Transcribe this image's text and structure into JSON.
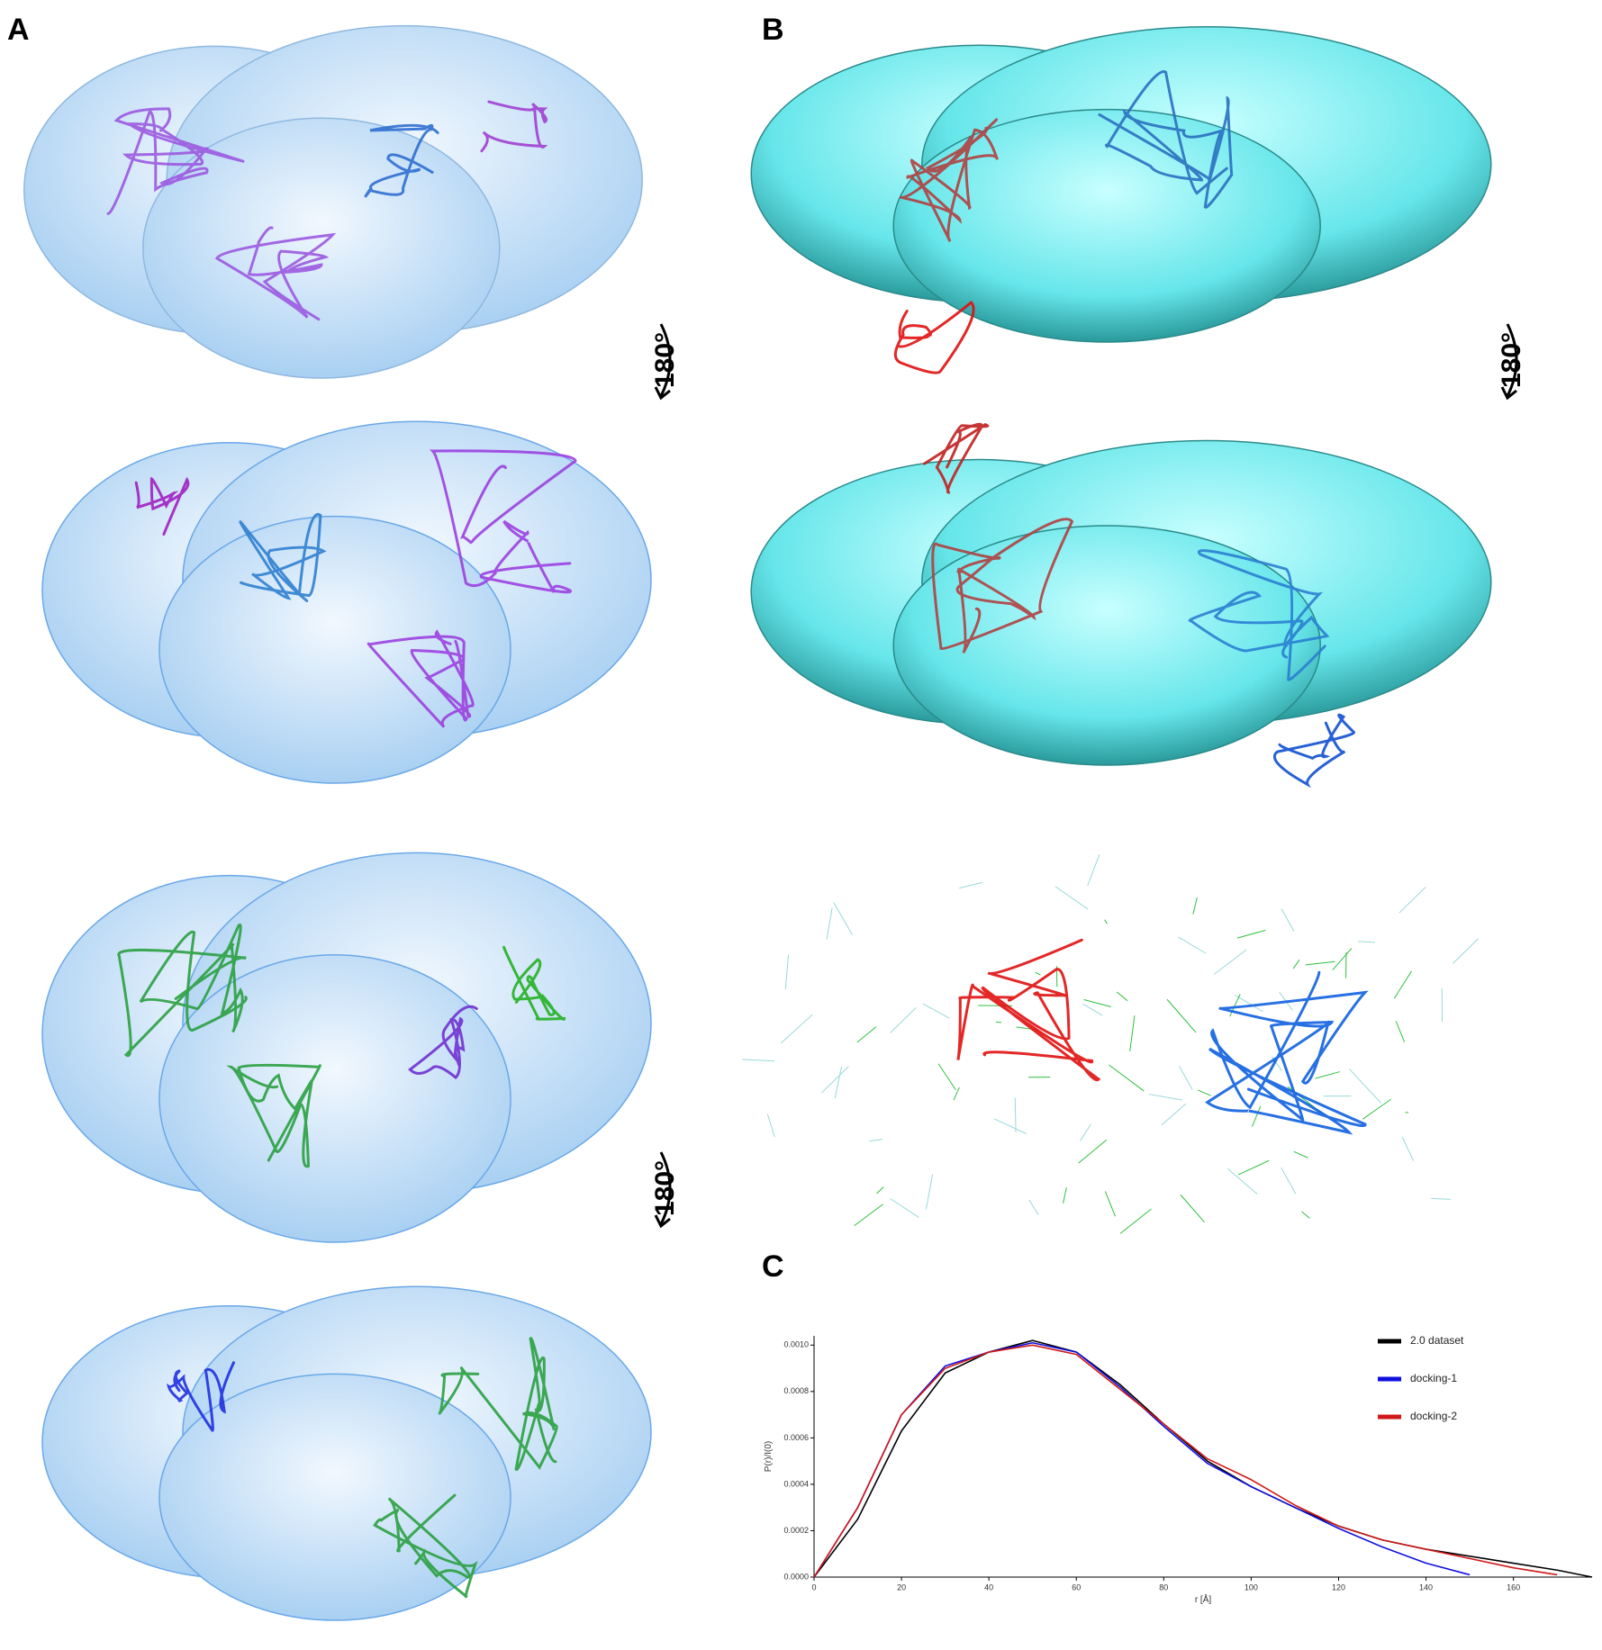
{
  "panels": {
    "a": {
      "label": "A"
    },
    "b": {
      "label": "B"
    },
    "c": {
      "label": "C"
    }
  },
  "rotation_labels": [
    "180°",
    "180°",
    "180°"
  ],
  "chart_data": {
    "type": "line",
    "xlabel": "r [Å]",
    "ylabel": "P(r)/I(0)",
    "x": [
      0,
      10,
      20,
      30,
      40,
      50,
      60,
      70,
      80,
      90,
      100,
      110,
      120,
      130,
      140,
      150,
      160,
      170,
      178
    ],
    "series": [
      {
        "name": "2.0 dataset",
        "color": "#000000",
        "values": [
          0,
          0.00025,
          0.00063,
          0.00088,
          0.00097,
          0.00102,
          0.00097,
          0.00083,
          0.00066,
          0.0005,
          0.00039,
          0.0003,
          0.00022,
          0.00016,
          0.00012,
          9e-05,
          6e-05,
          3e-05,
          0
        ]
      },
      {
        "name": "docking-1",
        "color": "#1010e0",
        "values": [
          0,
          0.0003,
          0.0007,
          0.00091,
          0.00097,
          0.00101,
          0.00097,
          0.00082,
          0.00065,
          0.00049,
          0.00039,
          0.0003,
          0.00021,
          0.00013,
          6e-05,
          1e-05,
          null,
          null,
          null
        ]
      },
      {
        "name": "docking-2",
        "color": "#d01818",
        "values": [
          0,
          0.0003,
          0.0007,
          0.0009,
          0.00097,
          0.001,
          0.00096,
          0.00081,
          0.00066,
          0.00051,
          0.00042,
          0.00031,
          0.00022,
          0.00016,
          0.00012,
          8e-05,
          4e-05,
          1e-05,
          null
        ]
      }
    ],
    "xlim": [
      0,
      178
    ],
    "xticks": [
      0,
      20,
      40,
      60,
      80,
      100,
      120,
      140,
      160
    ],
    "ylim": [
      0,
      0.00104
    ],
    "yticks": [
      {
        "value": 0,
        "label": "0.0000"
      },
      {
        "value": 0.0002,
        "label": "0.0002"
      },
      {
        "value": 0.0004,
        "label": "0.0004"
      },
      {
        "value": 0.0006,
        "label": "0.0006"
      },
      {
        "value": 0.0008,
        "label": "0.0008"
      },
      {
        "value": 0.001,
        "label": "0.0010"
      }
    ],
    "legend": "upper right"
  }
}
